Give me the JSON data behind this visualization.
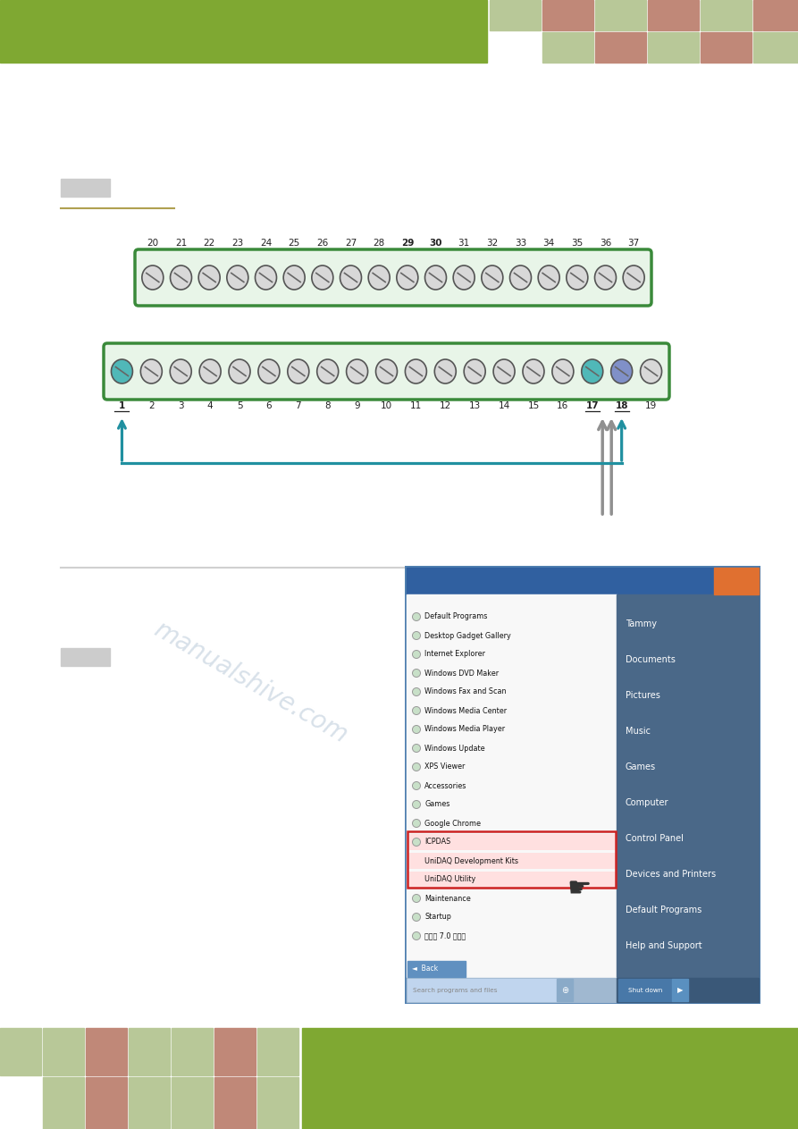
{
  "bg_color": "#ffffff",
  "header_green": "#7fa832",
  "col_pink": "#c08878",
  "col_lgreen": "#b8c898",
  "connector_fill": "#e8f5e8",
  "connector_border": "#3a8a3a",
  "pin_fill_normal": "#d8d8d8",
  "pin_fill_teal": "#50b8b8",
  "pin_fill_blue": "#8090c8",
  "arrow_teal": "#2090a0",
  "arrow_gray": "#909090",
  "top_row_labels": [
    "20",
    "21",
    "22",
    "23",
    "24",
    "25",
    "26",
    "27",
    "28",
    "29",
    "30",
    "31",
    "32",
    "33",
    "34",
    "35",
    "36",
    "37"
  ],
  "bot_row_labels": [
    "1",
    "2",
    "3",
    "4",
    "5",
    "6",
    "7",
    "8",
    "9",
    "10",
    "11",
    "12",
    "13",
    "14",
    "15",
    "16",
    "17",
    "18",
    "19"
  ],
  "bold_labels": [
    "29",
    "30"
  ],
  "underline_labels": [
    "1",
    "17",
    "18"
  ],
  "gray_box_color": "#cccccc",
  "divider_gold_color": "#b0a050",
  "divider_mid_color": "#d0d0d0",
  "watermark_color": "#b8c8d8",
  "ss_frame_color": "#5080b0",
  "ss_left_bg": "#f8f8f8",
  "ss_right_bg": "#4a6888",
  "ss_titlebar": "#3060a0",
  "ss_orange": "#e07030",
  "icpdas_highlight": "#ffe0e0",
  "icpdas_border": "#cc2222",
  "search_bar_color": "#c0d5ee",
  "shutdown_btn": "#4878a8",
  "right_panel_items": [
    "Tammy",
    "Documents",
    "Pictures",
    "Music",
    "Games",
    "Computer",
    "Control Panel",
    "Devices and Printers",
    "Default Programs",
    "Help and Support"
  ],
  "left_panel_progs": [
    "Default Programs",
    "Desktop Gadget Gallery",
    "Internet Explorer",
    "Windows DVD Maker",
    "Windows Fax and Scan",
    "Windows Media Center",
    "Windows Media Player",
    "Windows Update",
    "XPS Viewer",
    "Accessories",
    "Games",
    "Google Chrome",
    "ICPDAS",
    "  UniDAQ Development Kits",
    "  UniDAQ Utility",
    "Maintenance",
    "Startup",
    "输入法 7.0 标准版"
  ]
}
